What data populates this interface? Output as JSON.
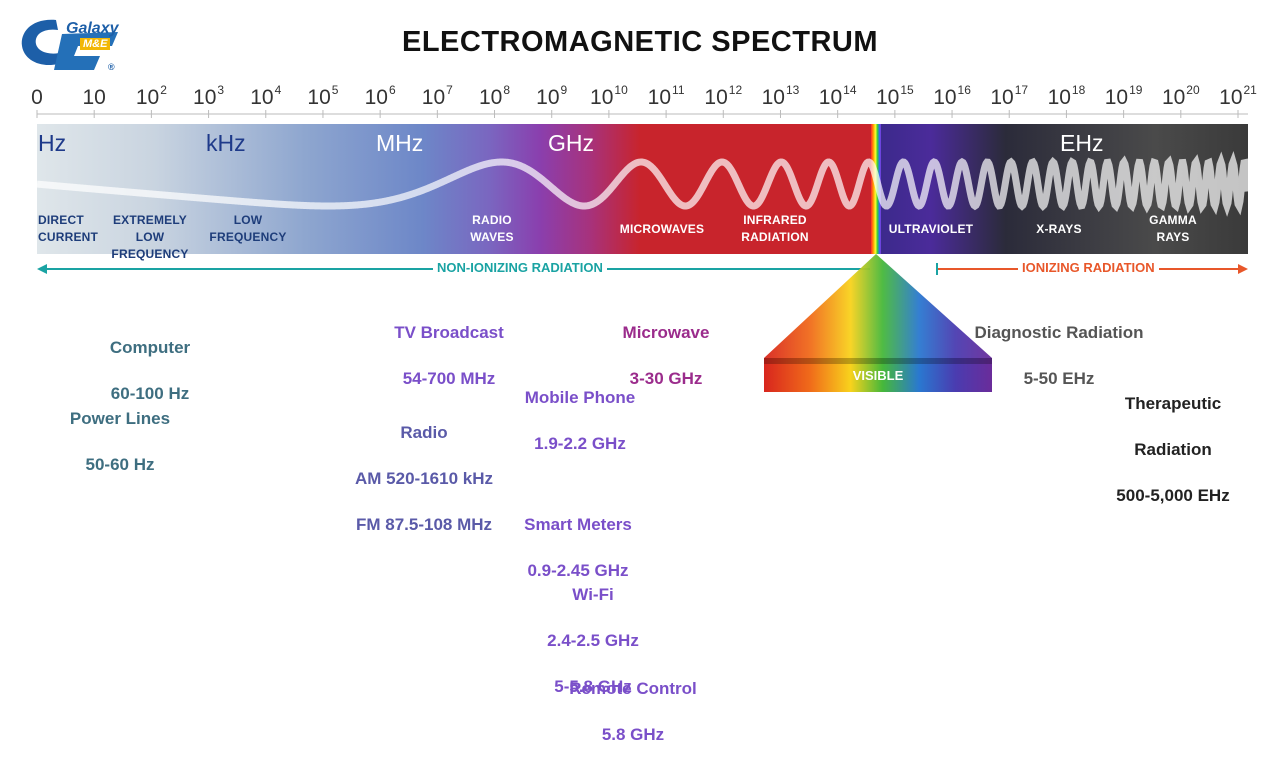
{
  "logo": {
    "line1": "Galaxy",
    "line2": "M&E",
    "mark": "®"
  },
  "title": "ELECTROMAGNETIC SPECTRUM",
  "ticks": [
    {
      "base": "0",
      "exp": ""
    },
    {
      "base": "10",
      "exp": ""
    },
    {
      "base": "10",
      "exp": "2"
    },
    {
      "base": "10",
      "exp": "3"
    },
    {
      "base": "10",
      "exp": "4"
    },
    {
      "base": "10",
      "exp": "5"
    },
    {
      "base": "10",
      "exp": "6"
    },
    {
      "base": "10",
      "exp": "7"
    },
    {
      "base": "10",
      "exp": "8"
    },
    {
      "base": "10",
      "exp": "9"
    },
    {
      "base": "10",
      "exp": "10"
    },
    {
      "base": "10",
      "exp": "11"
    },
    {
      "base": "10",
      "exp": "12"
    },
    {
      "base": "10",
      "exp": "13"
    },
    {
      "base": "10",
      "exp": "14"
    },
    {
      "base": "10",
      "exp": "15"
    },
    {
      "base": "10",
      "exp": "16"
    },
    {
      "base": "10",
      "exp": "17"
    },
    {
      "base": "10",
      "exp": "18"
    },
    {
      "base": "10",
      "exp": "19"
    },
    {
      "base": "10",
      "exp": "20"
    },
    {
      "base": "10",
      "exp": "21"
    }
  ],
  "units": {
    "hz": "Hz",
    "khz": "kHz",
    "mhz": "MHz",
    "ghz": "GHz",
    "ehz": "EHz"
  },
  "regions": {
    "direct_current": "DIRECT\nCURRENT",
    "extremely_low": "EXTREMELY LOW\nFREQUENCY",
    "low_frequency": "LOW\nFREQUENCY",
    "radio_waves": "RADIO\nWAVES",
    "microwaves": "MICROWAVES",
    "infrared": "INFRARED\nRADIATION",
    "ultraviolet": "ULTRAVIOLET",
    "xrays": "X-RAYS",
    "gamma": "GAMMA\nRAYS"
  },
  "radiation": {
    "non_ionizing": "NON-IONIZING RADIATION",
    "ionizing": "IONIZING RADIATION"
  },
  "visible_label": "VISIBLE",
  "applications": {
    "computer": {
      "name": "Computer",
      "range": "60-100 Hz"
    },
    "power_lines": {
      "name": "Power Lines",
      "range": "50-60 Hz"
    },
    "tv_broadcast": {
      "name": "TV Broadcast",
      "range": "54-700 MHz"
    },
    "radio": {
      "name": "Radio",
      "range1": "AM 520-1610 kHz",
      "range2": "FM 87.5-108 MHz"
    },
    "microwave": {
      "name": "Microwave",
      "range": "3-30 GHz"
    },
    "mobile_phone": {
      "name": "Mobile Phone",
      "range": "1.9-2.2 GHz"
    },
    "smart_meters": {
      "name": "Smart Meters",
      "range": "0.9-2.45 GHz"
    },
    "wifi": {
      "name": "Wi-Fi",
      "range1": "2.4-2.5 GHz",
      "range2": "5-5.8 GHz"
    },
    "remote_control": {
      "name": "Remote Control",
      "range": "5.8 GHz"
    },
    "diagnostic": {
      "name": "Diagnostic Radiation",
      "range": "5-50 EHz"
    },
    "therapeutic": {
      "name1": "Therapeutic",
      "name2": "Radiation",
      "range": "500-5,000 EHz"
    }
  },
  "colors": {
    "spectrum_start": "#dfe6ea",
    "spectrum_blue": "#5a78c0",
    "spectrum_purple": "#8a3fae",
    "spectrum_red": "#c8242c",
    "spectrum_dark": "#2b2b3a",
    "non_ionizing": "#1aa3a3",
    "ionizing": "#e8572a",
    "app_teal": "#3e6e80",
    "app_purple": "#7a4fc9",
    "app_magenta": "#9b2c8c",
    "app_gray": "#555555"
  }
}
